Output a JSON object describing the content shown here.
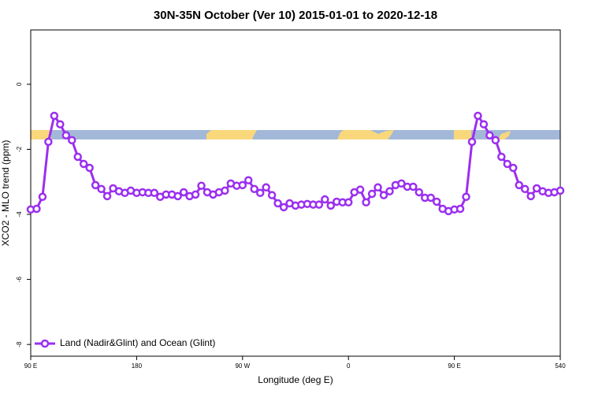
{
  "chart_data": {
    "type": "line",
    "title": "30N-35N October (Ver 10)   2015-01-01 to 2020-12-18",
    "xlabel": "Longitude (deg E)",
    "ylabel": "XCO2 - MLO trend (ppm)",
    "x": [
      90,
      95,
      100,
      105,
      110,
      115,
      120,
      125,
      130,
      135,
      140,
      145,
      150,
      155,
      160,
      165,
      170,
      175,
      180,
      185,
      190,
      195,
      200,
      205,
      210,
      215,
      220,
      225,
      230,
      235,
      240,
      245,
      250,
      255,
      260,
      265,
      270,
      275,
      280,
      285,
      290,
      295,
      300,
      305,
      310,
      315,
      320,
      325,
      330,
      335,
      340,
      345,
      350,
      355,
      360,
      365,
      370,
      375,
      380,
      385,
      390,
      395,
      400,
      405,
      410,
      415,
      420,
      425,
      430,
      435,
      440,
      445,
      450,
      455,
      460,
      465,
      470,
      475,
      480,
      485,
      490,
      495,
      500,
      505,
      510,
      515,
      520,
      525,
      530,
      535,
      540
    ],
    "series": [
      {
        "name": "Land (Nadir&Glint) and Ocean (Glint)",
        "color": "#9b2ff0",
        "values": [
          -3.85,
          -3.83,
          -3.46,
          -1.77,
          -0.97,
          -1.23,
          -1.57,
          -1.72,
          -2.23,
          -2.45,
          -2.57,
          -3.1,
          -3.22,
          -3.44,
          -3.2,
          -3.29,
          -3.34,
          -3.27,
          -3.34,
          -3.32,
          -3.34,
          -3.34,
          -3.46,
          -3.39,
          -3.39,
          -3.44,
          -3.32,
          -3.44,
          -3.39,
          -3.12,
          -3.32,
          -3.39,
          -3.32,
          -3.27,
          -3.05,
          -3.12,
          -3.1,
          -2.95,
          -3.22,
          -3.34,
          -3.17,
          -3.41,
          -3.66,
          -3.78,
          -3.66,
          -3.73,
          -3.7,
          -3.68,
          -3.7,
          -3.7,
          -3.54,
          -3.73,
          -3.61,
          -3.63,
          -3.63,
          -3.32,
          -3.24,
          -3.63,
          -3.37,
          -3.17,
          -3.41,
          -3.29,
          -3.1,
          -3.05,
          -3.15,
          -3.15,
          -3.32,
          -3.49,
          -3.49,
          -3.61,
          -3.83,
          -3.9,
          -3.85,
          -3.83,
          -3.46,
          -1.77,
          -0.97,
          -1.23,
          -1.57,
          -1.72,
          -2.23,
          -2.45,
          -2.57,
          -3.1,
          -3.22,
          -3.44,
          -3.2,
          -3.29,
          -3.34,
          -3.32,
          -3.27
        ]
      }
    ],
    "xlim": [
      90,
      540
    ],
    "xticks": [
      {
        "value": 90,
        "label": "90 E"
      },
      180,
      {
        "value": 270,
        "label": "90 W"
      },
      {
        "value": 360,
        "label": "0"
      },
      {
        "value": 450,
        "label": "90 E"
      },
      540
    ],
    "ylim": [
      -8.36,
      1.67
    ],
    "yticks": [
      0,
      -2,
      -4,
      -6,
      -8
    ],
    "legend": "bottom-left"
  }
}
